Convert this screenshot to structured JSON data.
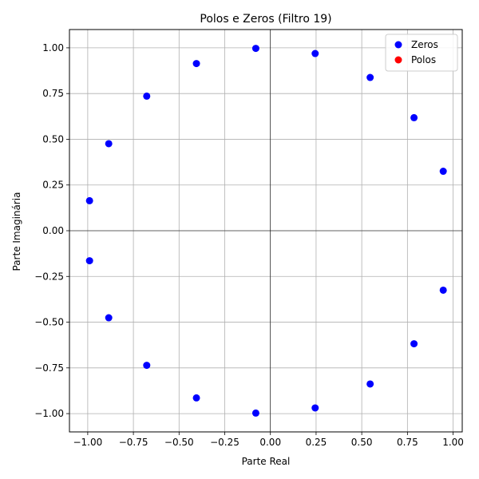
{
  "chart_data": {
    "type": "scatter",
    "title": "Polos e Zeros (Filtro 19)",
    "xlabel": "Parte Real",
    "ylabel": "Parte Imaginária",
    "xlim": [
      -1.1,
      1.05
    ],
    "ylim": [
      -1.1,
      1.1
    ],
    "xticks": [
      -1.0,
      -0.75,
      -0.5,
      -0.25,
      0.0,
      0.25,
      0.5,
      0.75,
      1.0
    ],
    "xtick_labels": [
      "−1.00",
      "−0.75",
      "−0.50",
      "−0.25",
      "0.00",
      "0.25",
      "0.50",
      "0.75",
      "1.00"
    ],
    "yticks": [
      -1.0,
      -0.75,
      -0.5,
      -0.25,
      0.0,
      0.25,
      0.5,
      0.75,
      1.0
    ],
    "ytick_labels": [
      "−1.00",
      "−0.75",
      "−0.50",
      "−0.25",
      "0.00",
      "0.25",
      "0.50",
      "0.75",
      "1.00"
    ],
    "grid": true,
    "legend_position": "top-right",
    "series": [
      {
        "name": "Zeros",
        "color": "#0000ff",
        "points": [
          [
            -0.08,
            0.997
          ],
          [
            0.245,
            0.969
          ],
          [
            0.546,
            0.838
          ],
          [
            0.786,
            0.618
          ],
          [
            0.946,
            0.325
          ],
          [
            -0.405,
            0.914
          ],
          [
            -0.677,
            0.736
          ],
          [
            -0.885,
            0.476
          ],
          [
            -0.99,
            0.164
          ],
          [
            -0.08,
            -0.997
          ],
          [
            0.245,
            -0.969
          ],
          [
            0.546,
            -0.838
          ],
          [
            0.786,
            -0.618
          ],
          [
            0.946,
            -0.325
          ],
          [
            -0.405,
            -0.914
          ],
          [
            -0.677,
            -0.736
          ],
          [
            -0.885,
            -0.476
          ],
          [
            -0.99,
            -0.164
          ]
        ]
      },
      {
        "name": "Polos",
        "color": "#ff0000",
        "points": []
      }
    ]
  }
}
